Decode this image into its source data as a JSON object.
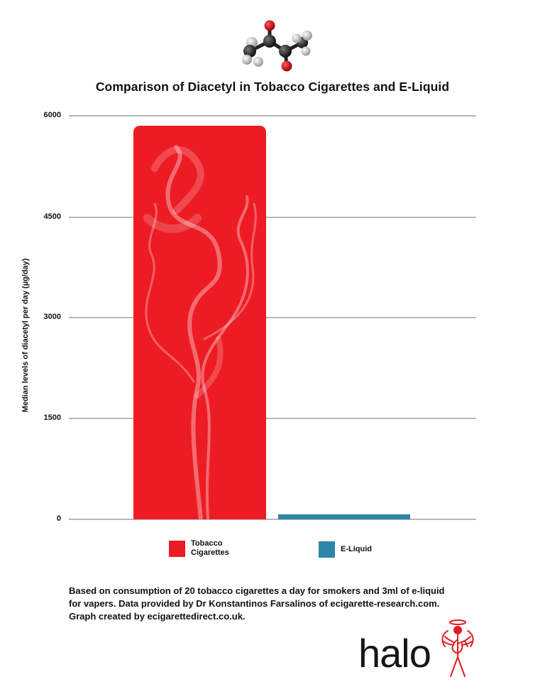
{
  "header": {
    "molecule_icon": "diacetyl-molecule-ball-and-stick"
  },
  "chart_data": {
    "type": "bar",
    "title": "Comparison of Diacetyl in Tobacco Cigarettes and E-Liquid",
    "xlabel": "",
    "ylabel": "Median levels of diacetyl per day (µg/day)",
    "categories": [
      "Tobacco Cigarettes",
      "E-Liquid"
    ],
    "values": [
      5850,
      70
    ],
    "colors": [
      "#ed1c24",
      "#2e86a6"
    ],
    "ylim": [
      0,
      6000
    ],
    "yticks": [
      0,
      1500,
      3000,
      4500,
      6000
    ],
    "grid": true,
    "legend_position": "bottom",
    "legend": [
      {
        "label_line1": "Tobacco",
        "label_line2": "Cigarettes",
        "color": "#ed1c24"
      },
      {
        "label_line1": "E-Liquid",
        "label_line2": "",
        "color": "#2e86a6"
      }
    ]
  },
  "axis": {
    "ticks": [
      "6000",
      "4500",
      "3000",
      "1500",
      "0"
    ]
  },
  "footnote": {
    "line1": "Based on consumption of 20 tobacco cigarettes a day for smokers and 3ml of e-liquid",
    "line2": "for vapers. Data provided by Dr Konstantinos Farsalinos of ecigarette-research.com.",
    "line3": "Graph created by ecigarettedirect.co.uk."
  },
  "brand": {
    "wordmark": "halo",
    "logo_icon": "angel-figure-icon",
    "accent": "#e31b23"
  }
}
